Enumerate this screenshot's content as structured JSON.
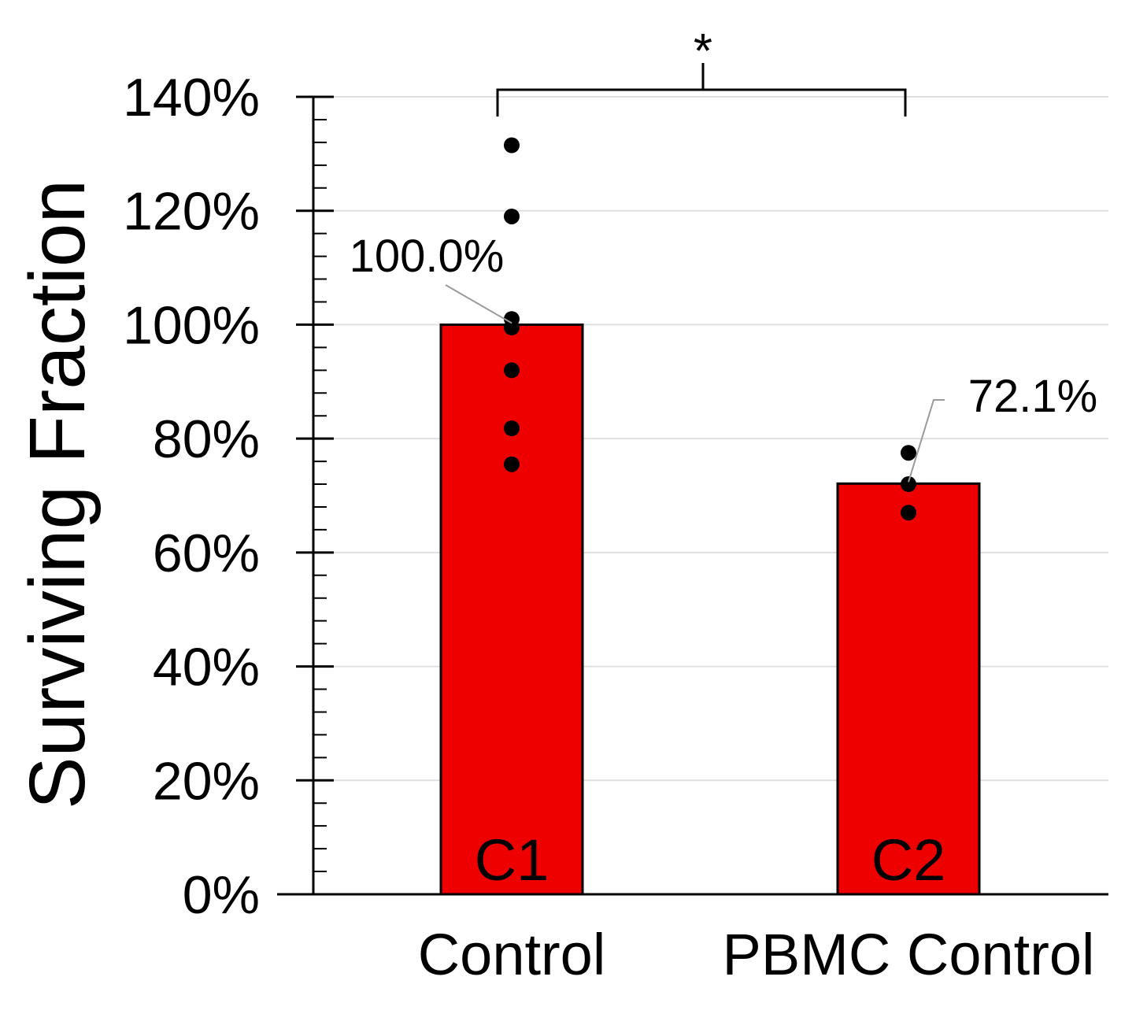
{
  "chart_data": {
    "type": "bar",
    "title": "",
    "xlabel": "",
    "ylabel": "Surviving Fraction",
    "ylim": [
      0,
      140
    ],
    "y_unit": "%",
    "yticks": [
      "0%",
      "20%",
      "40%",
      "60%",
      "80%",
      "100%",
      "120%",
      "140%"
    ],
    "ytick_values": [
      0,
      20,
      40,
      60,
      80,
      100,
      120,
      140
    ],
    "grid": true,
    "categories": [
      "Control",
      "PBMC Control"
    ],
    "values": [
      100.0,
      72.1
    ],
    "value_labels": [
      "100.0%",
      "72.1%"
    ],
    "bar_labels": [
      "C1",
      "C2"
    ],
    "bar_color": "#ee0000",
    "points": [
      [
        131.5,
        119,
        101,
        99.5,
        92,
        81.8,
        75.5
      ],
      [
        77.5,
        72,
        67
      ]
    ],
    "significance": {
      "between": [
        "Control",
        "PBMC Control"
      ],
      "label": "*"
    }
  }
}
